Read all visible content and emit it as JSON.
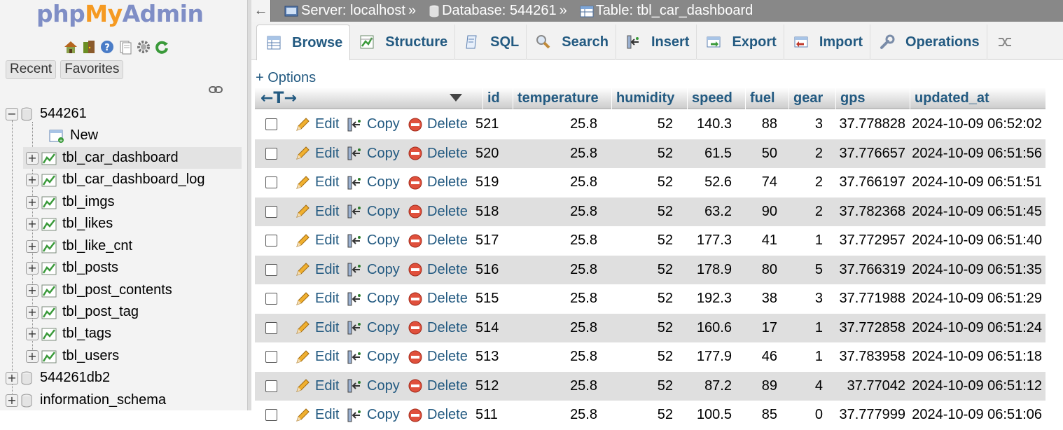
{
  "logo": {
    "php": "php",
    "my": "My",
    "admin": "Admin"
  },
  "nav": {
    "tabs": [
      "Recent",
      "Favorites"
    ],
    "tree": [
      {
        "label": "544261",
        "kind": "db",
        "expander": "−"
      },
      {
        "label": "New",
        "kind": "new"
      },
      {
        "label": "tbl_car_dashboard",
        "kind": "table",
        "expander": "+",
        "selected": true
      },
      {
        "label": "tbl_car_dashboard_log",
        "kind": "table",
        "expander": "+"
      },
      {
        "label": "tbl_imgs",
        "kind": "table",
        "expander": "+"
      },
      {
        "label": "tbl_likes",
        "kind": "table",
        "expander": "+"
      },
      {
        "label": "tbl_like_cnt",
        "kind": "table",
        "expander": "+"
      },
      {
        "label": "tbl_posts",
        "kind": "table",
        "expander": "+"
      },
      {
        "label": "tbl_post_contents",
        "kind": "table",
        "expander": "+"
      },
      {
        "label": "tbl_post_tag",
        "kind": "table",
        "expander": "+"
      },
      {
        "label": "tbl_tags",
        "kind": "table",
        "expander": "+"
      },
      {
        "label": "tbl_users",
        "kind": "table",
        "expander": "+"
      },
      {
        "label": "544261db2",
        "kind": "db",
        "expander": "+"
      },
      {
        "label": "information_schema",
        "kind": "db",
        "expander": "+"
      }
    ]
  },
  "topbar": {
    "back": "←",
    "server_label": "Server: localhost",
    "database_label": "Database: 544261",
    "table_label": "Table: tbl_car_dashboard",
    "separator": "»"
  },
  "menu": {
    "tabs": [
      "Browse",
      "Structure",
      "SQL",
      "Search",
      "Insert",
      "Export",
      "Import",
      "Operations"
    ]
  },
  "options_link": "+ Options",
  "table": {
    "colwidth_control": "←T→",
    "headers": [
      "id",
      "temperature",
      "humidity",
      "speed",
      "fuel",
      "gear",
      "gps",
      "updated_at"
    ],
    "actions": {
      "edit": "Edit",
      "copy": "Copy",
      "delete": "Delete"
    },
    "rows": [
      [
        "521",
        "25.8",
        "52",
        "140.3",
        "88",
        "3",
        "37.778828",
        "2024-10-09 06:52:02"
      ],
      [
        "520",
        "25.8",
        "52",
        "61.5",
        "50",
        "2",
        "37.776657",
        "2024-10-09 06:51:56"
      ],
      [
        "519",
        "25.8",
        "52",
        "52.6",
        "74",
        "2",
        "37.766197",
        "2024-10-09 06:51:51"
      ],
      [
        "518",
        "25.8",
        "52",
        "63.2",
        "90",
        "2",
        "37.782368",
        "2024-10-09 06:51:45"
      ],
      [
        "517",
        "25.8",
        "52",
        "177.3",
        "41",
        "1",
        "37.772957",
        "2024-10-09 06:51:40"
      ],
      [
        "516",
        "25.8",
        "52",
        "178.9",
        "80",
        "5",
        "37.766319",
        "2024-10-09 06:51:35"
      ],
      [
        "515",
        "25.8",
        "52",
        "192.3",
        "38",
        "3",
        "37.771988",
        "2024-10-09 06:51:29"
      ],
      [
        "514",
        "25.8",
        "52",
        "160.6",
        "17",
        "1",
        "37.772858",
        "2024-10-09 06:51:24"
      ],
      [
        "513",
        "25.8",
        "52",
        "177.9",
        "46",
        "1",
        "37.783958",
        "2024-10-09 06:51:18"
      ],
      [
        "512",
        "25.8",
        "52",
        "87.2",
        "89",
        "4",
        "37.77042",
        "2024-10-09 06:51:12"
      ],
      [
        "511",
        "25.8",
        "52",
        "100.5",
        "85",
        "0",
        "37.777999",
        "2024-10-09 06:51:06"
      ]
    ]
  }
}
